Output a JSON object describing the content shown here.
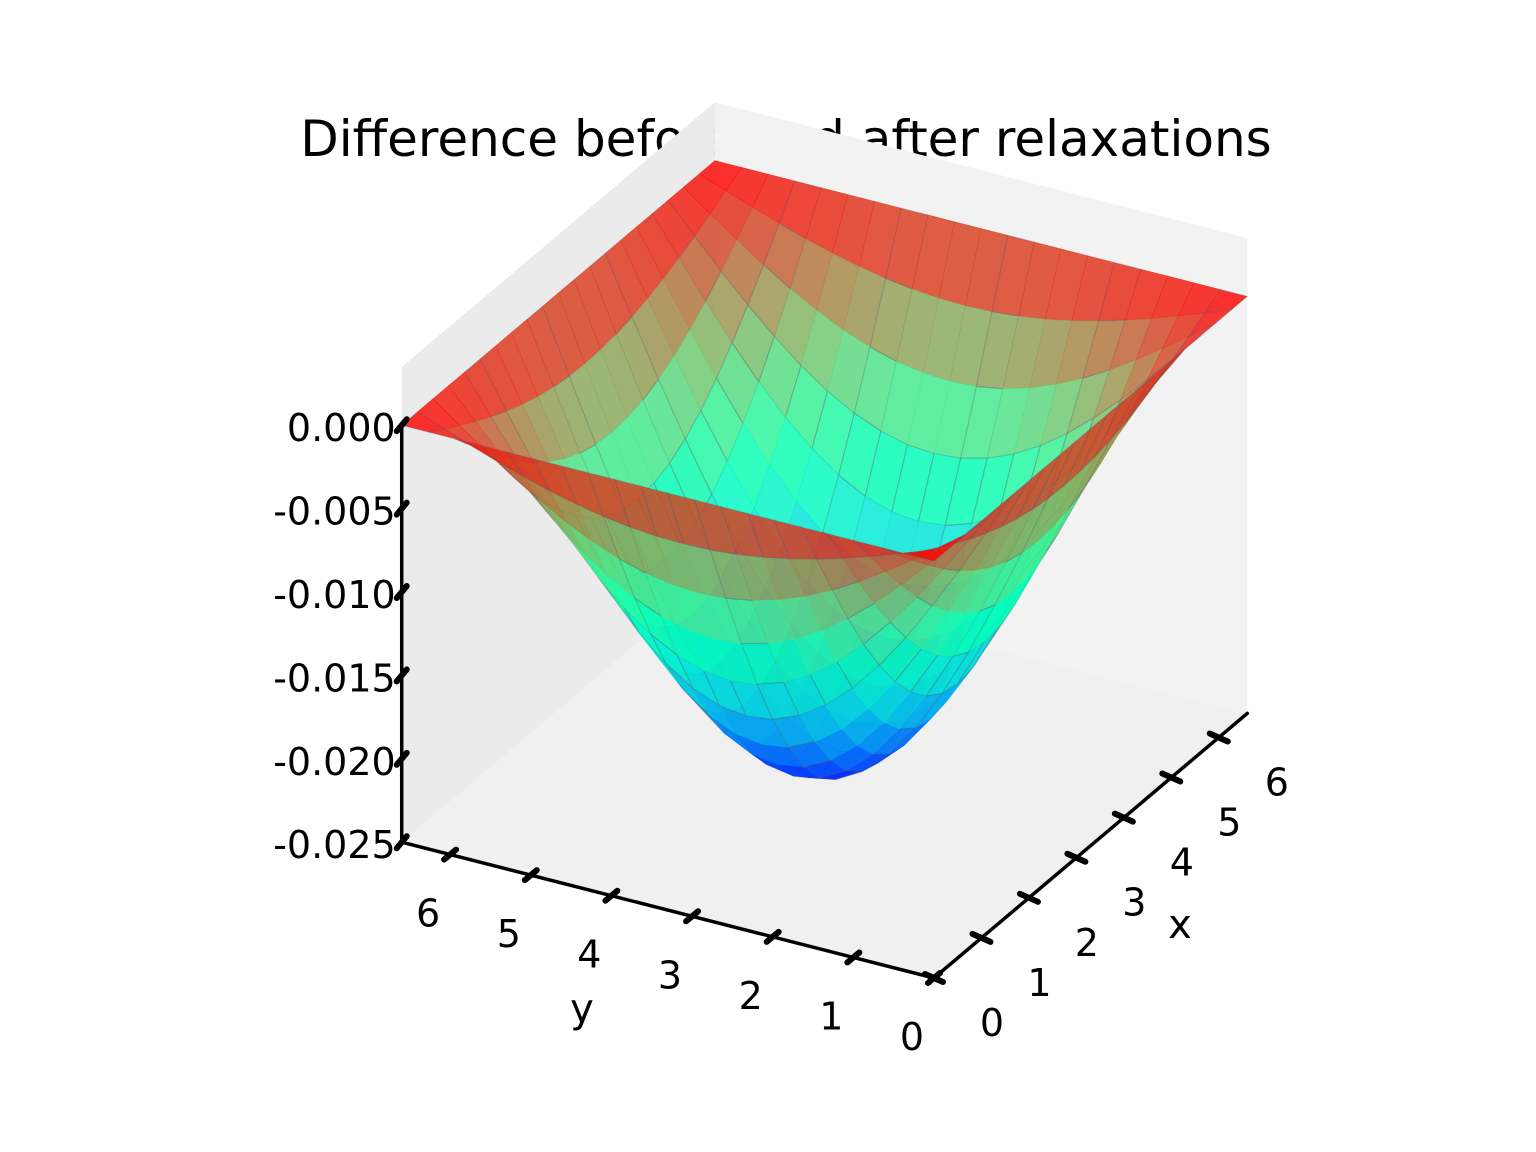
{
  "chart_data": {
    "type": "surface3d",
    "title": "Difference before and after relaxations",
    "xlabel": "x",
    "ylabel": "y",
    "zlabel": "",
    "xlim": [
      0,
      6.6
    ],
    "ylim": [
      0,
      6.6
    ],
    "zlim": [
      -0.025,
      0
    ],
    "x_ticks": [
      "0",
      "1",
      "2",
      "3",
      "4",
      "5",
      "6"
    ],
    "y_ticks": [
      "0",
      "1",
      "2",
      "3",
      "4",
      "5",
      "6"
    ],
    "z_ticks": [
      "0.000",
      "-0.005",
      "-0.010",
      "-0.015",
      "-0.020",
      "-0.025"
    ],
    "colormap": "rainbow",
    "style": "xkcd",
    "grid_n": 21,
    "surface": {
      "formula": "z = -0.0245 * sin(pi*x/L) * sin(pi*y/L)",
      "L": 6.6,
      "min_z": -0.0245,
      "min_at": [
        3.3,
        3.3
      ],
      "boundary_z": 0
    }
  }
}
